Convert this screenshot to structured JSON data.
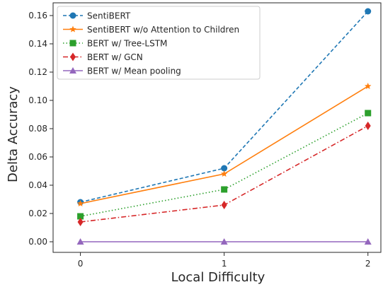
{
  "chart_data": {
    "type": "line",
    "xlabel": "Local Difficulty",
    "ylabel": "Delta Accuracy",
    "x": [
      0,
      1,
      2
    ],
    "xticks": [
      "0",
      "1",
      "2"
    ],
    "xlim": [
      -0.19,
      2.09
    ],
    "ylim": [
      -0.0075,
      0.169
    ],
    "yticks": [
      "0.00",
      "0.02",
      "0.04",
      "0.06",
      "0.08",
      "0.10",
      "0.12",
      "0.14",
      "0.16"
    ],
    "grid": false,
    "legend_position": "top-left",
    "series": [
      {
        "name": "SentiBERT",
        "values": [
          0.028,
          0.052,
          0.163
        ],
        "color": "#1f77b4",
        "dash": "5,3",
        "marker": "circle"
      },
      {
        "name": "SentiBERT w/o Attention to Children",
        "values": [
          0.027,
          0.048,
          0.11
        ],
        "color": "#ff7f0e",
        "dash": "",
        "marker": "star"
      },
      {
        "name": "BERT w/ Tree-LSTM",
        "values": [
          0.018,
          0.037,
          0.091
        ],
        "color": "#2ca02c",
        "dash": "1.5,3",
        "marker": "square"
      },
      {
        "name": "BERT w/ GCN",
        "values": [
          0.014,
          0.026,
          0.082
        ],
        "color": "#d62728",
        "dash": "7,3,1.5,3",
        "marker": "diamond"
      },
      {
        "name": "BERT w/ Mean pooling",
        "values": [
          0.0,
          0.0,
          0.0
        ],
        "color": "#9467bd",
        "dash": "",
        "marker": "triangle"
      }
    ]
  }
}
